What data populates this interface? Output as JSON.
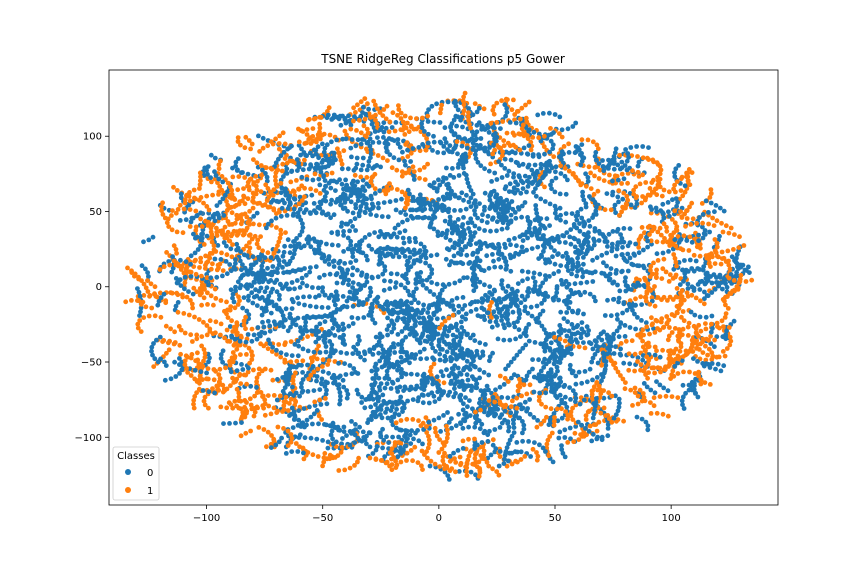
{
  "chart_data": {
    "type": "scatter",
    "title": "TSNE RidgeReg Classifications p5 Gower",
    "xlabel": "",
    "ylabel": "",
    "xlim": [
      -142,
      146
    ],
    "ylim": [
      -145,
      144
    ],
    "xticks": [
      -100,
      -50,
      0,
      50,
      100
    ],
    "yticks": [
      -100,
      -50,
      0,
      50,
      100
    ],
    "xtick_labels": [
      "−100",
      "−50",
      "0",
      "50",
      "100"
    ],
    "ytick_labels": [
      "−100",
      "−50",
      "0",
      "50",
      "100"
    ],
    "grid": false,
    "legend": {
      "title": "Classes",
      "placement": "lower-left",
      "entries": [
        "0",
        "1"
      ]
    },
    "series": [
      {
        "name": "0",
        "color": "#1f77b4",
        "description_shape": "dense elliptical cloud covering the centre and most of the ellipse",
        "x_range": [
          -130,
          132
        ],
        "y_range": [
          -130,
          130
        ]
      },
      {
        "name": "1",
        "color": "#ff7f0e",
        "description_shape": "curved worm-like strands concentrated near the outer rim, especially left and right edges",
        "x_range": [
          -133,
          132
        ],
        "y_range": [
          -130,
          125
        ]
      }
    ]
  }
}
